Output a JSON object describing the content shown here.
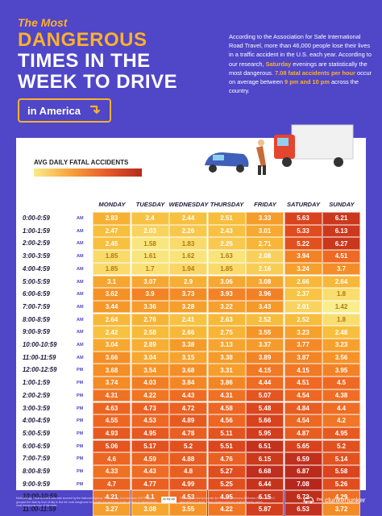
{
  "header": {
    "title_line0": "The Most",
    "title_line1": "DANGEROUS",
    "title_line2": "TIMES IN THE",
    "title_line3": "WEEK TO DRIVE",
    "region": "in America",
    "intro_part1": "According to the Association for Safe International Road Travel, more than 46,000 people lose their lives in a traffic accident in the U.S. each year. According to our research, ",
    "intro_hl1": "Saturday",
    "intro_part2": " evenings are statistically the most dangerous. ",
    "intro_hl2": "7.08 fatal accidents per hour",
    "intro_part3": " occur on average between ",
    "intro_hl3": "9 pm and 10 pm",
    "intro_part4": " across the country."
  },
  "legend": {
    "label": "AVG DAILY FATAL ACCIDENTS"
  },
  "footer": {
    "methodology": "Methodology: Fatal accident data was sourced by the National Highway Traffic Safety Administration (NHTSA). We grouped the data by hour of day to find the most dangerous hour of the day and hour of day of week to determine the most dangerous hour of the week.",
    "license": "This image is licensed under the Creative Commons Attribution-Share Alike 4.0 International License - www.creativecommons.org/licenses/by-sa/4.0",
    "cc_badge": "cc by sa",
    "brand_the": "the",
    "brand_name": "clunkerjunker"
  },
  "chart_data": {
    "type": "heatmap",
    "title": "The Most DANGEROUS TIMES IN THE WEEK TO DRIVE in America",
    "legend": "AVG DAILY FATAL ACCIDENTS",
    "columns": [
      "MONDAY",
      "TUESDAY",
      "WEDNESDAY",
      "THURSDAY",
      "FRIDAY",
      "SATURDAY",
      "SUNDAY"
    ],
    "rows": [
      {
        "time": "0:00-0:59",
        "ampm": "AM",
        "values": [
          2.83,
          2.4,
          2.44,
          2.51,
          3.33,
          5.63,
          6.21
        ]
      },
      {
        "time": "1:00-1:59",
        "ampm": "AM",
        "values": [
          2.47,
          2.03,
          2.26,
          2.43,
          3.01,
          5.33,
          6.13
        ]
      },
      {
        "time": "2:00-2:59",
        "ampm": "AM",
        "values": [
          2.45,
          1.58,
          1.83,
          2.25,
          2.71,
          5.22,
          6.27
        ]
      },
      {
        "time": "3:00-3:59",
        "ampm": "AM",
        "values": [
          1.85,
          1.61,
          1.62,
          1.63,
          2.08,
          3.94,
          4.51
        ]
      },
      {
        "time": "4:00-4:59",
        "ampm": "AM",
        "values": [
          1.85,
          1.7,
          1.94,
          1.85,
          2.16,
          3.24,
          3.7
        ]
      },
      {
        "time": "5:00-5:59",
        "ampm": "AM",
        "values": [
          3.1,
          3.07,
          2.9,
          3.06,
          3.08,
          2.66,
          2.64
        ]
      },
      {
        "time": "6:00-6:59",
        "ampm": "AM",
        "values": [
          3.62,
          3.9,
          3.73,
          3.93,
          3.96,
          2.37,
          1.8
        ]
      },
      {
        "time": "7:00-7:59",
        "ampm": "AM",
        "values": [
          3.44,
          3.36,
          3.28,
          3.22,
          3.43,
          2.01,
          1.42
        ]
      },
      {
        "time": "8:00-8:59",
        "ampm": "AM",
        "values": [
          2.64,
          2.76,
          2.41,
          2.63,
          2.52,
          2.52,
          1.8
        ]
      },
      {
        "time": "9:00-9:59",
        "ampm": "AM",
        "values": [
          2.42,
          2.58,
          2.66,
          2.75,
          3.55,
          3.23,
          2.48
        ]
      },
      {
        "time": "10:00-10:59",
        "ampm": "AM",
        "values": [
          3.04,
          2.89,
          3.38,
          3.13,
          3.37,
          3.77,
          3.23
        ]
      },
      {
        "time": "11:00-11:59",
        "ampm": "AM",
        "values": [
          3.66,
          3.04,
          3.15,
          3.38,
          3.89,
          3.87,
          3.56
        ]
      },
      {
        "time": "12:00-12:59",
        "ampm": "PM",
        "values": [
          3.68,
          3.54,
          3.68,
          3.31,
          4.15,
          4.15,
          3.95
        ]
      },
      {
        "time": "1:00-1:59",
        "ampm": "PM",
        "values": [
          3.74,
          4.03,
          3.84,
          3.86,
          4.44,
          4.51,
          4.5
        ]
      },
      {
        "time": "2:00-2:59",
        "ampm": "PM",
        "values": [
          4.31,
          4.22,
          4.43,
          4.31,
          5.07,
          4.54,
          4.38
        ]
      },
      {
        "time": "3:00-3:59",
        "ampm": "PM",
        "values": [
          4.63,
          4.73,
          4.72,
          4.58,
          5.48,
          4.84,
          4.4
        ]
      },
      {
        "time": "4:00-4:59",
        "ampm": "PM",
        "values": [
          4.55,
          4.53,
          4.89,
          4.56,
          5.66,
          4.54,
          4.2
        ]
      },
      {
        "time": "5:00-5:59",
        "ampm": "PM",
        "values": [
          4.93,
          4.95,
          4.78,
          5.11,
          5.95,
          4.87,
          4.95
        ]
      },
      {
        "time": "6:00-6:59",
        "ampm": "PM",
        "values": [
          5.06,
          5.17,
          5.2,
          5.51,
          6.51,
          5.65,
          5.2
        ]
      },
      {
        "time": "7:00-7:59",
        "ampm": "PM",
        "values": [
          4.6,
          4.59,
          4.88,
          4.76,
          6.15,
          6.59,
          5.14
        ]
      },
      {
        "time": "8:00-8:59",
        "ampm": "PM",
        "values": [
          4.33,
          4.43,
          4.8,
          5.27,
          6.68,
          6.87,
          5.58
        ]
      },
      {
        "time": "9:00-9:59",
        "ampm": "PM",
        "values": [
          4.7,
          4.77,
          4.99,
          5.25,
          6.44,
          7.08,
          5.26
        ]
      },
      {
        "time": "10:00-10:59",
        "ampm": "PM",
        "values": [
          4.21,
          4.1,
          4.53,
          4.95,
          6.15,
          6.72,
          4.29
        ]
      },
      {
        "time": "11:00-11:59",
        "ampm": "PM",
        "values": [
          3.27,
          3.08,
          3.55,
          4.22,
          5.87,
          6.53,
          3.72
        ]
      }
    ]
  }
}
